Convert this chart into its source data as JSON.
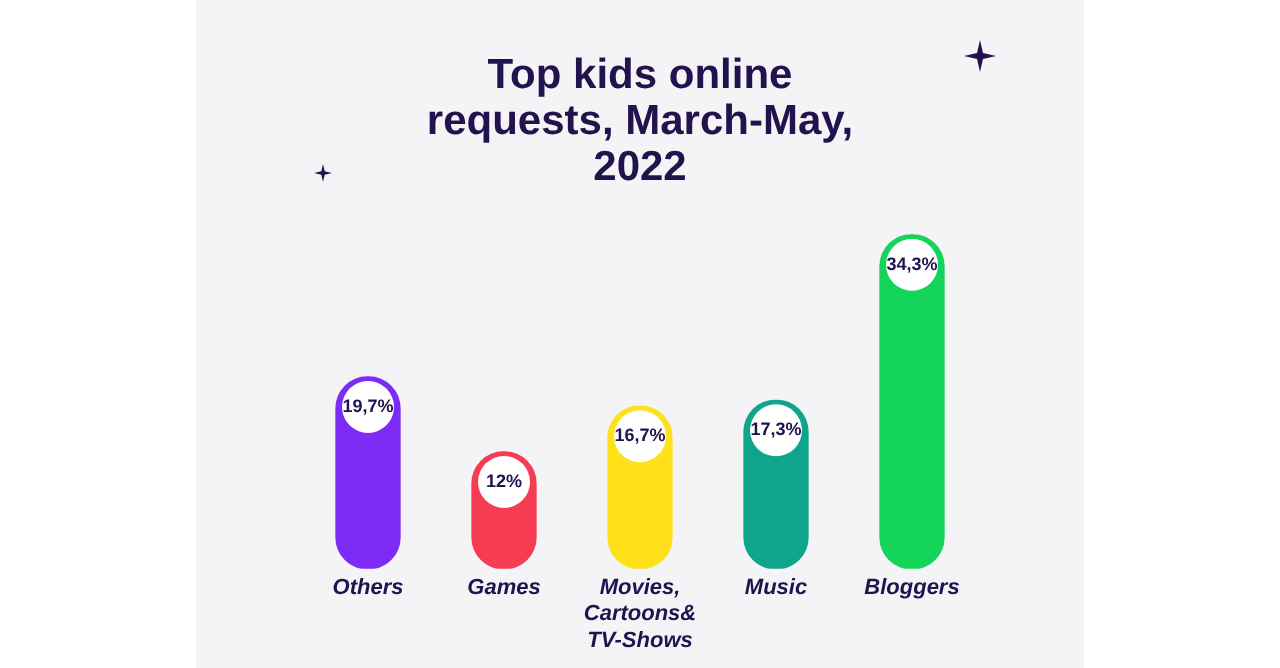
{
  "chart_data": {
    "type": "bar",
    "title": "Top kids online requests, March-May, 2022",
    "categories": [
      "Others",
      "Games",
      "Movies, Cartoons& TV-Shows",
      "Music",
      "Bloggers"
    ],
    "values": [
      19.7,
      12,
      16.7,
      17.3,
      34.3
    ],
    "value_labels": [
      "19,7%",
      "12%",
      "16,7%",
      "17,3%",
      "34,3%"
    ],
    "colors": [
      "#7d2cf5",
      "#f63c52",
      "#ffe11a",
      "#0ea58b",
      "#14d45a"
    ],
    "grid": false,
    "legend": false
  }
}
